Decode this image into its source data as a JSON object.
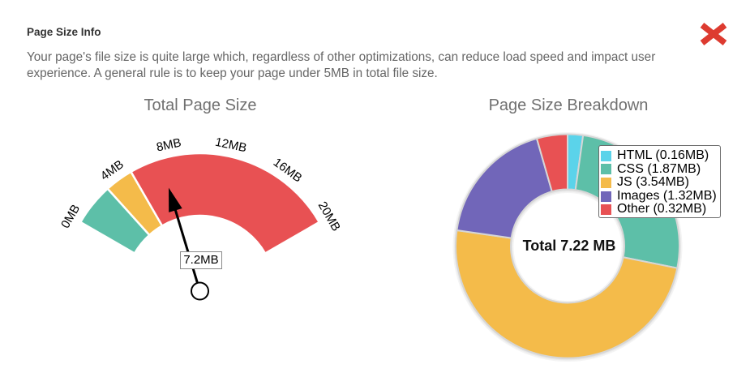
{
  "dialog": {
    "title": "Page Size Info",
    "description": "Your page's file size is quite large which, regardless of other optimizations, can reduce load speed and impact user experience. A general rule is to keep your page under 5MB in total file size.",
    "close_icon": "close-x-icon",
    "close_color": "#dd3b30"
  },
  "gauge": {
    "title": "Total Page Size",
    "value_label": "7.2MB"
  },
  "breakdown": {
    "title": "Page Size Breakdown",
    "center_label": "Total 7.22 MB",
    "legend": [
      {
        "label": "HTML (0.16MB)",
        "color": "#5bd3ea"
      },
      {
        "label": "CSS (1.87MB)",
        "color": "#5dbfa8"
      },
      {
        "label": "JS (3.54MB)",
        "color": "#f4bb4a"
      },
      {
        "label": "Images (1.32MB)",
        "color": "#7166b9"
      },
      {
        "label": "Other (0.32MB)",
        "color": "#e85153"
      }
    ]
  },
  "chart_data": [
    {
      "type": "gauge",
      "title": "Total Page Size",
      "unit": "MB",
      "min": 0,
      "max": 20,
      "value": 7.2,
      "value_label": "7.2MB",
      "ticks": [
        0,
        4,
        8,
        12,
        16,
        20
      ],
      "tick_labels": [
        "0MB",
        "4MB",
        "8MB",
        "12MB",
        "16MB",
        "20MB"
      ],
      "bands": [
        {
          "from": 0,
          "to": 3,
          "color": "#5dbfa8"
        },
        {
          "from": 3,
          "to": 5,
          "color": "#f4bb4a"
        },
        {
          "from": 5,
          "to": 20,
          "color": "#e85153"
        }
      ]
    },
    {
      "type": "pie",
      "variant": "donut",
      "title": "Page Size Breakdown",
      "categories": [
        "HTML",
        "CSS",
        "JS",
        "Images",
        "Other"
      ],
      "values": [
        0.16,
        1.87,
        3.54,
        1.32,
        0.32
      ],
      "unit": "MB",
      "colors": [
        "#5bd3ea",
        "#5dbfa8",
        "#f4bb4a",
        "#7166b9",
        "#e85153"
      ],
      "legend": [
        "HTML (0.16MB)",
        "CSS (1.87MB)",
        "JS (3.54MB)",
        "Images (1.32MB)",
        "Other (0.32MB)"
      ],
      "legend_position": "top-right",
      "center_label": "Total 7.22 MB",
      "total": 7.22
    }
  ]
}
